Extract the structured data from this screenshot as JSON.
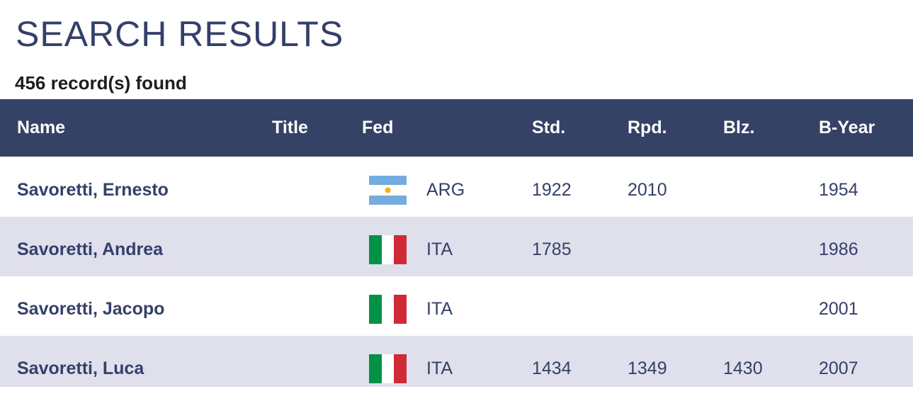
{
  "header": {
    "title": "SEARCH RESULTS",
    "count": "456 record(s) found"
  },
  "table": {
    "columns": [
      "Name",
      "Title",
      "Fed",
      "Std.",
      "Rpd.",
      "Blz.",
      "B-Year"
    ],
    "rows": [
      [
        "Savoretti, Ernesto",
        null,
        "ARG",
        1922,
        2010,
        null,
        1954
      ],
      [
        "Savoretti, Andrea",
        null,
        "ITA",
        1785,
        null,
        null,
        1986
      ],
      [
        "Savoretti, Jacopo",
        null,
        "ITA",
        null,
        null,
        null,
        2001
      ],
      [
        "Savoretti, Luca",
        null,
        "ITA",
        1434,
        1349,
        1430,
        2007
      ]
    ]
  }
}
